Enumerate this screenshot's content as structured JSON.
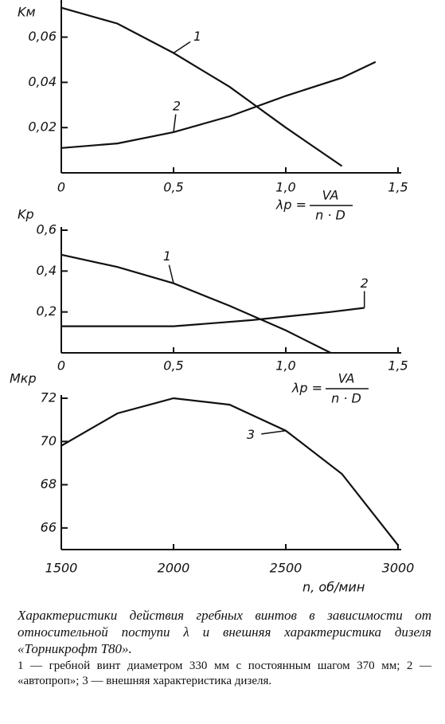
{
  "chart_data": [
    {
      "type": "line",
      "y_label": "Kм",
      "x_label": "λp =",
      "x_label_num": "VA",
      "x_label_den": "n · D",
      "xlim": [
        0,
        1.5
      ],
      "ylim": [
        0,
        0.075
      ],
      "xticks": [
        {
          "value": 0,
          "label": "0"
        },
        {
          "value": 0.5,
          "label": "0,5"
        },
        {
          "value": 1.0,
          "label": "1,0"
        },
        {
          "value": 1.5,
          "label": "1,5"
        }
      ],
      "yticks": [
        {
          "value": 0.02,
          "label": "0,02"
        },
        {
          "value": 0.04,
          "label": "0,04"
        },
        {
          "value": 0.06,
          "label": "0,06"
        }
      ],
      "series": [
        {
          "name": "1",
          "color": "#111111",
          "x": [
            0,
            0.25,
            0.5,
            0.75,
            1.0,
            1.25
          ],
          "values": [
            0.073,
            0.066,
            0.053,
            0.038,
            0.02,
            0.003
          ]
        },
        {
          "name": "2",
          "color": "#111111",
          "x": [
            0,
            0.25,
            0.5,
            0.75,
            1.0,
            1.25,
            1.4
          ],
          "values": [
            0.011,
            0.013,
            0.018,
            0.025,
            0.034,
            0.042,
            0.049
          ]
        }
      ]
    },
    {
      "type": "line",
      "y_label": "Kp",
      "x_label": "λp =",
      "x_label_num": "VA",
      "x_label_den": "n · D",
      "xlim": [
        0,
        1.5
      ],
      "ylim": [
        0,
        0.6
      ],
      "xticks": [
        {
          "value": 0,
          "label": "0"
        },
        {
          "value": 0.5,
          "label": "0,5"
        },
        {
          "value": 1.0,
          "label": "1,0"
        },
        {
          "value": 1.5,
          "label": "1,5"
        }
      ],
      "yticks": [
        {
          "value": 0.2,
          "label": "0,2"
        },
        {
          "value": 0.4,
          "label": "0,4"
        },
        {
          "value": 0.6,
          "label": "0,6"
        }
      ],
      "series": [
        {
          "name": "1",
          "color": "#111111",
          "x": [
            0,
            0.25,
            0.5,
            0.75,
            1.0,
            1.2
          ],
          "values": [
            0.48,
            0.42,
            0.34,
            0.23,
            0.11,
            0.0
          ]
        },
        {
          "name": "2",
          "color": "#111111",
          "x": [
            0,
            0.5,
            0.85,
            1.2,
            1.35
          ],
          "values": [
            0.13,
            0.13,
            0.16,
            0.2,
            0.22
          ]
        }
      ]
    },
    {
      "type": "line",
      "y_label": "Mкр",
      "x_label": "n, об/мин",
      "xlim": [
        1500,
        3000
      ],
      "ylim": [
        65,
        72
      ],
      "xticks": [
        1500,
        2000,
        2500,
        3000
      ],
      "yticks": [
        66,
        68,
        70,
        72
      ],
      "series": [
        {
          "name": "3",
          "color": "#111111",
          "x": [
            1500,
            1750,
            2000,
            2250,
            2500,
            2750,
            3000
          ],
          "values": [
            69.8,
            71.3,
            72,
            71.7,
            70.5,
            68.5,
            65.2
          ]
        }
      ]
    }
  ],
  "caption": {
    "title": "Характеристики действия гребных винтов в зависимости от относительной поступи λ и внешняя характеристика дизеля «Торникрофт T80».",
    "legend": "1 — гребной винт диаметром 330 мм с постоянным шагом 370 мм; 2 — «автопроп»; 3 — внешняя характеристика дизеля."
  }
}
